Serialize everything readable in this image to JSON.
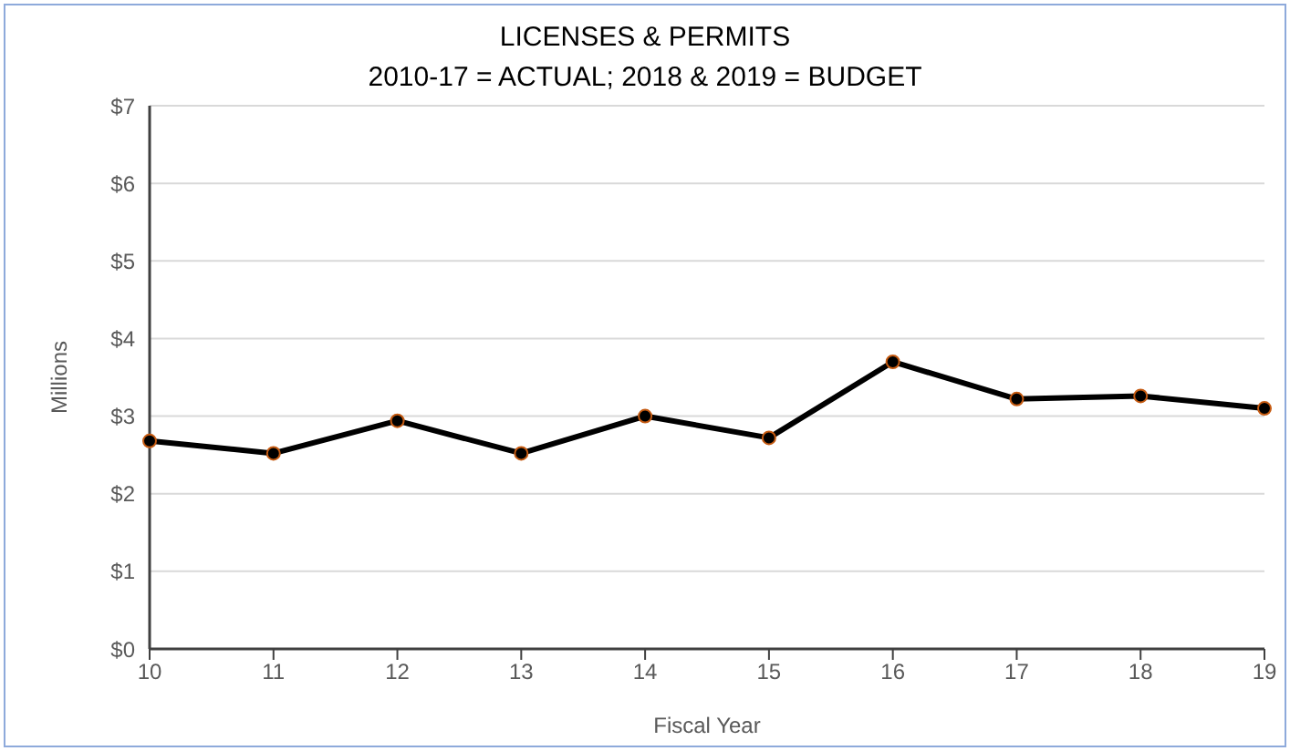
{
  "chart_data": {
    "type": "line",
    "title": "LICENSES & PERMITS",
    "subtitle": "2010-17 = ACTUAL; 2018 & 2019 = BUDGET",
    "xlabel": "Fiscal Year",
    "ylabel": "Millions",
    "categories": [
      "10",
      "11",
      "12",
      "13",
      "14",
      "15",
      "16",
      "17",
      "18",
      "19"
    ],
    "series": [
      {
        "color": "#000000",
        "values": [
          2.68,
          2.52,
          2.94,
          2.52,
          3.0,
          2.72,
          3.7,
          3.22,
          3.26,
          3.1
        ]
      }
    ],
    "ylim": [
      0,
      7
    ],
    "yticks": [
      {
        "value": 0,
        "label": "$0"
      },
      {
        "value": 1,
        "label": "$1"
      },
      {
        "value": 2,
        "label": "$2"
      },
      {
        "value": 3,
        "label": "$3"
      },
      {
        "value": 4,
        "label": "$4"
      },
      {
        "value": 5,
        "label": "$5"
      },
      {
        "value": 6,
        "label": "$6"
      },
      {
        "value": 7,
        "label": "$7"
      }
    ],
    "grid": "y",
    "marker": "circle",
    "line_style": "solid",
    "legend": false
  }
}
